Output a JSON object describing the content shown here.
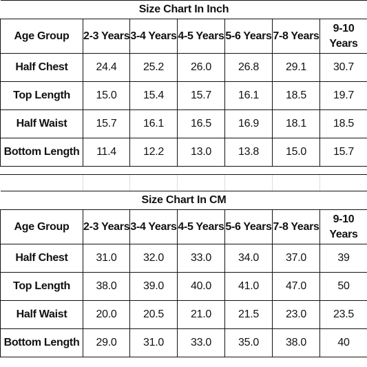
{
  "tables": [
    {
      "title": "Size Chart In Inch",
      "headers": [
        "Age Group",
        "2-3 Years",
        "3-4 Years",
        "4-5 Years",
        "5-6 Years",
        "7-8 Years",
        "9-10 Years"
      ],
      "rows": [
        {
          "label": "Half Chest",
          "values": [
            "24.4",
            "25.2",
            "26.0",
            "26.8",
            "29.1",
            "30.7"
          ]
        },
        {
          "label": "Top Length",
          "values": [
            "15.0",
            "15.4",
            "15.7",
            "16.1",
            "18.5",
            "19.7"
          ]
        },
        {
          "label": "Half Waist",
          "values": [
            "15.7",
            "16.1",
            "16.5",
            "16.9",
            "18.1",
            "18.5"
          ]
        },
        {
          "label": "Bottom Length",
          "values": [
            "11.4",
            "12.2",
            "13.0",
            "13.8",
            "15.0",
            "15.7"
          ]
        }
      ]
    },
    {
      "title": "Size Chart In CM",
      "headers": [
        "Age Group",
        "2-3 Years",
        "3-4 Years",
        "4-5 Years",
        "5-6 Years",
        "7-8 Years",
        "9-10 Years"
      ],
      "rows": [
        {
          "label": "Half Chest",
          "values": [
            "31.0",
            "32.0",
            "33.0",
            "34.0",
            "37.0",
            "39"
          ]
        },
        {
          "label": "Top Length",
          "values": [
            "38.0",
            "39.0",
            "40.0",
            "41.0",
            "47.0",
            "50"
          ]
        },
        {
          "label": "Half Waist",
          "values": [
            "20.0",
            "20.5",
            "21.0",
            "21.5",
            "23.0",
            "23.5"
          ]
        },
        {
          "label": "Bottom Length",
          "values": [
            "29.0",
            "31.0",
            "33.0",
            "35.0",
            "38.0",
            "40"
          ]
        }
      ]
    }
  ]
}
